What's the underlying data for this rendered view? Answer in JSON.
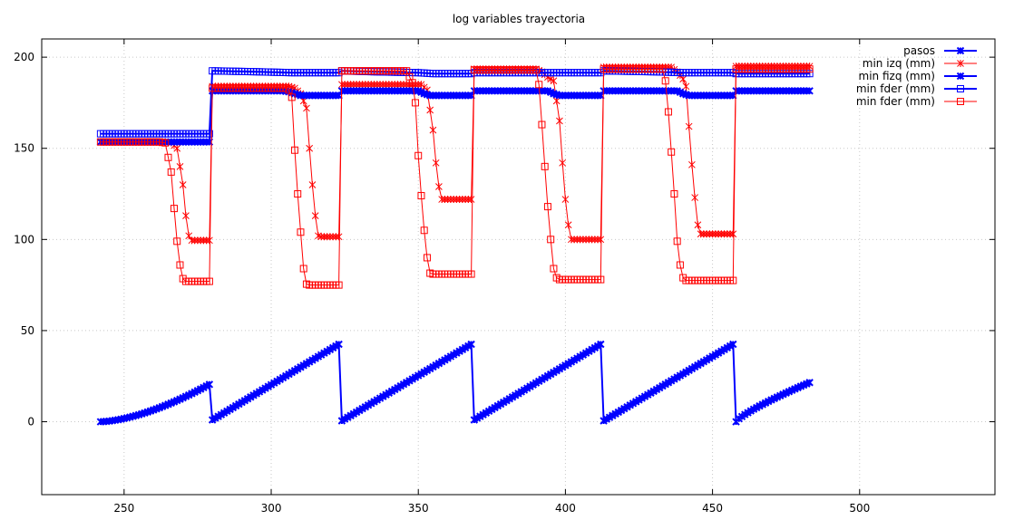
{
  "chart_data": {
    "type": "line",
    "title": "log variables trayectoria",
    "xlabel": "",
    "ylabel": "",
    "xlim": [
      222,
      546
    ],
    "ylim": [
      -40,
      210
    ],
    "xticks": [
      250,
      300,
      350,
      400,
      450,
      500
    ],
    "yticks": [
      0,
      50,
      100,
      150,
      200
    ],
    "grid": true,
    "legend_position": "top-right",
    "series": [
      {
        "name": "pasos",
        "color": "#0000ff",
        "style": "linespoints",
        "marker": "x-star",
        "segments": [
          {
            "x_start": 242,
            "x_end": 279,
            "y_start": 0,
            "y_end": 20.5,
            "curve": 1.6
          },
          {
            "x_start": 280,
            "x_end": 323,
            "y_start": 1,
            "y_end": 42.5,
            "curve": 1.0
          },
          {
            "x_start": 324,
            "x_end": 368,
            "y_start": 0.5,
            "y_end": 42.5,
            "curve": 1.0
          },
          {
            "x_start": 369,
            "x_end": 412,
            "y_start": 1,
            "y_end": 42.5,
            "curve": 1.0
          },
          {
            "x_start": 413,
            "x_end": 457,
            "y_start": 0.5,
            "y_end": 42.5,
            "curve": 1.0
          },
          {
            "x_start": 458,
            "x_end": 483,
            "y_start": 0,
            "y_end": 21.5,
            "curve": 0.8
          }
        ]
      },
      {
        "name": "min izq (mm)",
        "color": "#ff0000",
        "style": "linespoints",
        "marker": "star",
        "keypoints": [
          [
            242,
            153.5
          ],
          [
            264,
            153.5
          ],
          [
            266,
            153
          ],
          [
            268,
            150
          ],
          [
            270,
            130
          ],
          [
            271,
            113
          ],
          [
            272,
            102
          ],
          [
            273,
            99.5
          ],
          [
            279,
            99.5
          ],
          [
            280,
            184
          ],
          [
            306,
            184
          ],
          [
            308,
            183
          ],
          [
            310,
            180
          ],
          [
            312,
            172
          ],
          [
            313,
            150
          ],
          [
            314,
            130
          ],
          [
            315,
            113
          ],
          [
            316,
            102
          ],
          [
            317,
            101.5
          ],
          [
            323,
            101.5
          ],
          [
            324,
            185
          ],
          [
            351,
            185
          ],
          [
            353,
            182
          ],
          [
            355,
            160
          ],
          [
            356,
            142
          ],
          [
            357,
            129
          ],
          [
            358,
            122
          ],
          [
            368,
            122
          ],
          [
            369,
            193.5
          ],
          [
            390,
            193.5
          ],
          [
            392,
            192
          ],
          [
            394,
            189
          ],
          [
            396,
            187
          ],
          [
            398,
            165
          ],
          [
            399,
            142
          ],
          [
            400,
            122
          ],
          [
            401,
            108
          ],
          [
            402,
            100
          ],
          [
            412,
            100
          ],
          [
            413,
            194.5
          ],
          [
            436,
            194.5
          ],
          [
            438,
            192
          ],
          [
            440,
            188
          ],
          [
            441,
            184
          ],
          [
            442,
            162
          ],
          [
            443,
            141
          ],
          [
            444,
            123
          ],
          [
            445,
            108
          ],
          [
            446,
            103
          ],
          [
            457,
            103
          ],
          [
            458,
            195
          ],
          [
            483,
            195
          ]
        ]
      },
      {
        "name": "min fizq (mm)",
        "color": "#0000ff",
        "style": "linespoints",
        "marker": "x-star",
        "keypoints": [
          [
            242,
            153.5
          ],
          [
            279,
            153.5
          ],
          [
            280,
            181.5
          ],
          [
            304,
            181.5
          ],
          [
            306,
            181
          ],
          [
            308,
            180
          ],
          [
            310,
            179
          ],
          [
            323,
            179
          ],
          [
            324,
            181.5
          ],
          [
            350,
            181.5
          ],
          [
            352,
            180
          ],
          [
            354,
            179
          ],
          [
            368,
            179
          ],
          [
            369,
            181.5
          ],
          [
            394,
            181.5
          ],
          [
            396,
            180
          ],
          [
            398,
            179
          ],
          [
            412,
            179
          ],
          [
            413,
            181.5
          ],
          [
            438,
            181.5
          ],
          [
            440,
            180
          ],
          [
            442,
            179
          ],
          [
            457,
            179
          ],
          [
            458,
            181.5
          ],
          [
            483,
            181.5
          ]
        ]
      },
      {
        "name": "min fder (mm)",
        "color": "#0000ff",
        "style": "linespoints",
        "marker": "square",
        "keypoints": [
          [
            242,
            158
          ],
          [
            279,
            158
          ],
          [
            280,
            192.5
          ],
          [
            295,
            192
          ],
          [
            307,
            191.5
          ],
          [
            323,
            191.5
          ],
          [
            324,
            192.5
          ],
          [
            335,
            192
          ],
          [
            350,
            191.5
          ],
          [
            355,
            191
          ],
          [
            368,
            191
          ],
          [
            369,
            191.5
          ],
          [
            390,
            191.5
          ],
          [
            400,
            191.5
          ],
          [
            412,
            191.5
          ],
          [
            413,
            192.5
          ],
          [
            430,
            192
          ],
          [
            440,
            191.5
          ],
          [
            457,
            191.5
          ],
          [
            458,
            191
          ],
          [
            483,
            191
          ]
        ]
      },
      {
        "name": "min fder (mm)",
        "color": "#ff0000",
        "style": "linespoints",
        "marker": "square",
        "keypoints": [
          [
            242,
            153.5
          ],
          [
            262,
            153.5
          ],
          [
            264,
            153
          ],
          [
            266,
            137
          ],
          [
            267,
            117
          ],
          [
            268,
            99
          ],
          [
            269,
            86
          ],
          [
            270,
            78.5
          ],
          [
            271,
            77
          ],
          [
            279,
            77
          ],
          [
            280,
            183
          ],
          [
            305,
            183
          ],
          [
            306,
            182
          ],
          [
            307,
            178
          ],
          [
            308,
            149
          ],
          [
            309,
            125
          ],
          [
            310,
            104
          ],
          [
            311,
            84
          ],
          [
            312,
            75.5
          ],
          [
            313,
            75
          ],
          [
            323,
            75
          ],
          [
            324,
            192.5
          ],
          [
            346,
            192.5
          ],
          [
            348,
            186
          ],
          [
            349,
            175
          ],
          [
            350,
            146
          ],
          [
            351,
            124
          ],
          [
            352,
            105
          ],
          [
            353,
            90
          ],
          [
            354,
            81.5
          ],
          [
            355,
            81
          ],
          [
            368,
            81
          ],
          [
            369,
            193
          ],
          [
            390,
            193
          ],
          [
            391,
            185
          ],
          [
            392,
            163
          ],
          [
            393,
            140
          ],
          [
            394,
            118
          ],
          [
            395,
            100
          ],
          [
            396,
            84
          ],
          [
            397,
            79
          ],
          [
            398,
            78
          ],
          [
            412,
            78
          ],
          [
            413,
            193.5
          ],
          [
            433,
            193.5
          ],
          [
            434,
            187
          ],
          [
            435,
            170
          ],
          [
            436,
            148
          ],
          [
            437,
            125
          ],
          [
            438,
            99
          ],
          [
            439,
            86
          ],
          [
            440,
            79
          ],
          [
            441,
            77.5
          ],
          [
            457,
            77.5
          ],
          [
            458,
            193.5
          ],
          [
            483,
            193.5
          ]
        ]
      }
    ]
  }
}
